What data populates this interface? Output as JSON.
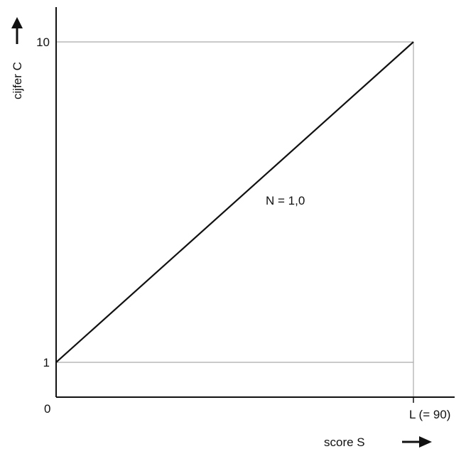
{
  "chart_data": {
    "type": "line",
    "xlabel": "score S",
    "ylabel": "cijfer C",
    "origin_label": "0",
    "xlim": [
      0,
      90
    ],
    "ylim": [
      0,
      10
    ],
    "x_ticks": [
      {
        "value": 90,
        "label": "L (= 90)"
      }
    ],
    "y_ticks": [
      {
        "value": 1,
        "label": "1"
      },
      {
        "value": 10,
        "label": "10"
      }
    ],
    "series": [
      {
        "name": "N = 1,0",
        "x": [
          0,
          90
        ],
        "y": [
          1,
          10
        ]
      }
    ],
    "grid": false,
    "reference_lines": [
      {
        "orientation": "horizontal",
        "value": 1
      },
      {
        "orientation": "horizontal",
        "value": 10
      },
      {
        "orientation": "vertical",
        "value": 90
      }
    ],
    "colors": {
      "line": "#111111",
      "axis": "#111111",
      "reference": "#aaaaaa"
    }
  }
}
